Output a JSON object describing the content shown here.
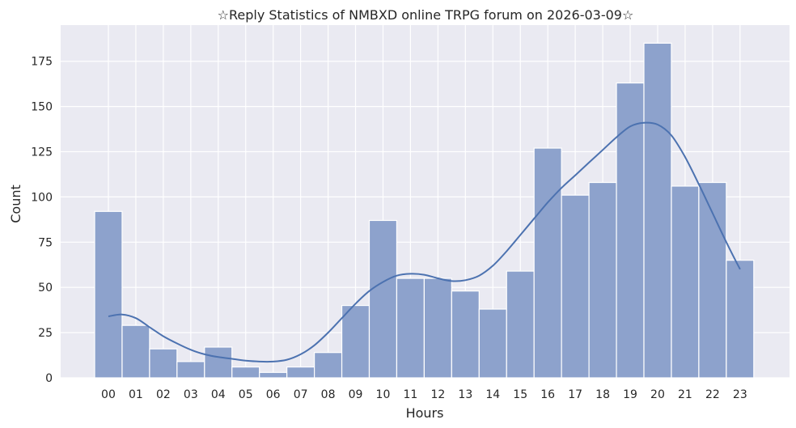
{
  "chart_data": {
    "type": "bar",
    "title": "☆Reply Statistics of NMBXD online TRPG forum on 2026-03-09☆",
    "xlabel": "Hours",
    "ylabel": "Count",
    "categories": [
      "00",
      "01",
      "02",
      "03",
      "04",
      "05",
      "06",
      "07",
      "08",
      "09",
      "10",
      "11",
      "12",
      "13",
      "14",
      "15",
      "16",
      "17",
      "18",
      "19",
      "20",
      "21",
      "22",
      "23"
    ],
    "values": [
      92,
      29,
      16,
      9,
      17,
      6,
      3,
      6,
      14,
      40,
      87,
      55,
      55,
      48,
      38,
      59,
      127,
      101,
      108,
      163,
      185,
      106,
      108,
      65
    ],
    "ylim": [
      0,
      195
    ],
    "yticks": [
      0,
      25,
      50,
      75,
      100,
      125,
      150,
      175
    ],
    "grid": true,
    "kde": {
      "x": [
        0,
        0.5,
        1,
        1.5,
        2,
        2.5,
        3,
        3.5,
        4,
        4.5,
        5,
        5.5,
        6,
        6.5,
        7,
        7.5,
        8,
        8.5,
        9,
        9.5,
        10,
        10.5,
        11,
        11.5,
        12,
        12.5,
        13,
        13.5,
        14,
        14.5,
        15,
        15.5,
        16,
        16.5,
        17,
        17.5,
        18,
        18.5,
        19,
        19.5,
        20,
        20.5,
        21,
        21.5,
        22,
        22.5,
        23
      ],
      "y": [
        34,
        35,
        33,
        28,
        23,
        19,
        15.5,
        13,
        11.5,
        10.5,
        9.5,
        9,
        9,
        10,
        13,
        18,
        25,
        33,
        41,
        48,
        53,
        56.5,
        57.5,
        57,
        55,
        53.5,
        54,
        56.5,
        62,
        70,
        79,
        88,
        97,
        105,
        112,
        119,
        126,
        133,
        139,
        141,
        140,
        134,
        122,
        107,
        91,
        75,
        60
      ]
    },
    "colors": {
      "background": "#eaeaf2",
      "grid": "#ffffff",
      "bar_fill": "#8da2cc",
      "bar_edge": "#ffffff",
      "kde_line": "#4c72b0"
    }
  }
}
